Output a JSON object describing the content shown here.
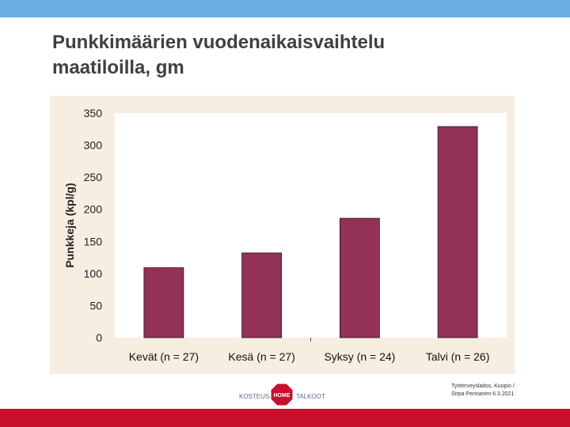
{
  "slide": {
    "title_line1": "Punkkimäärien vuodenaikaisvaihtelu",
    "title_line2": "maatiloilla, gm"
  },
  "footer": {
    "logo_left": "KOSTEUS-",
    "logo_middle": "HOME",
    "logo_right": "TALKOOT",
    "credit_line1": "Työterveyslaitos, Kuopio /",
    "credit_line2": "Sirpa Pennanen 6.3.2021"
  },
  "colors": {
    "top_bar": "#6aaee3",
    "bottom_bar": "#c8102e",
    "chart_background": "#f6eee1",
    "bar_fill": "#943159"
  },
  "chart_data": {
    "type": "bar",
    "categories": [
      "Kevät (n = 27)",
      "Kesä (n = 27)",
      "Syksy (n = 24)",
      "Talvi (n = 26)"
    ],
    "values": [
      109,
      132,
      186,
      329
    ],
    "title": "",
    "xlabel": "",
    "ylabel": "Punkkeja (kpl/g)",
    "ylim": [
      0,
      350
    ],
    "yticks": [
      "0",
      "50",
      "100",
      "150",
      "200",
      "250",
      "300",
      "350"
    ],
    "grid": false,
    "legend": false
  }
}
